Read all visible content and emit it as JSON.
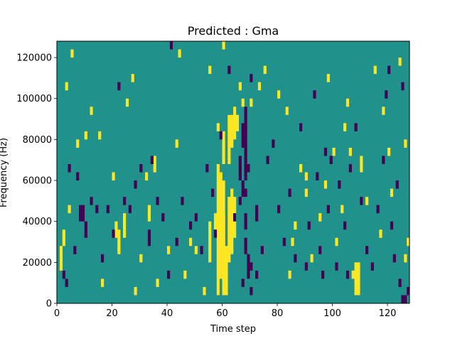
{
  "chart_data": {
    "type": "heatmap",
    "title": "Predicted : Gma",
    "xlabel": "Time step",
    "ylabel": "Frequency (Hz)",
    "xlim": [
      0,
      128
    ],
    "ylim": [
      0,
      128000
    ],
    "xticks": [
      0,
      20,
      40,
      60,
      80,
      100,
      120
    ],
    "yticks": [
      0,
      20000,
      40000,
      60000,
      80000,
      100000,
      120000
    ],
    "xtick_labels": [
      "0",
      "20",
      "40",
      "60",
      "80",
      "100",
      "120"
    ],
    "ytick_labels": [
      "0",
      "20000",
      "40000",
      "60000",
      "80000",
      "100000",
      "120000"
    ],
    "background_value": 0,
    "colors": {
      "background": "#21918c",
      "high": "#fde725",
      "low": "#440154"
    },
    "cell_height_hz": 4000,
    "cells_high": [
      [
        60,
        4000,
        28000
      ],
      [
        61,
        4000,
        28000
      ],
      [
        59,
        12000,
        64000
      ],
      [
        60,
        24000,
        44000
      ],
      [
        62,
        20000,
        52000
      ],
      [
        58,
        4000,
        68000
      ],
      [
        60,
        8000,
        60000
      ],
      [
        63,
        24000,
        56000
      ],
      [
        64,
        32000,
        52000
      ],
      [
        62,
        68000,
        92000
      ],
      [
        63,
        76000,
        92000
      ],
      [
        64,
        80000,
        92000
      ],
      [
        65,
        84000,
        92000
      ],
      [
        64,
        88000,
        96000
      ],
      [
        60,
        68000,
        84000
      ],
      [
        58,
        84000,
        88000
      ],
      [
        55,
        20000,
        40000
      ],
      [
        57,
        36000,
        44000
      ],
      [
        1,
        16000,
        28000
      ],
      [
        2,
        28000,
        36000
      ],
      [
        3,
        104000,
        108000
      ],
      [
        4,
        44000,
        48000
      ],
      [
        5,
        120000,
        124000
      ],
      [
        12,
        92000,
        96000
      ],
      [
        7,
        76000,
        80000
      ],
      [
        10,
        80000,
        84000
      ],
      [
        16,
        8000,
        12000
      ],
      [
        21,
        32000,
        40000
      ],
      [
        22,
        24000,
        36000
      ],
      [
        24,
        32000,
        44000
      ],
      [
        27,
        108000,
        112000
      ],
      [
        28,
        4000,
        8000
      ],
      [
        30,
        20000,
        24000
      ],
      [
        32,
        60000,
        64000
      ],
      [
        33,
        40000,
        48000
      ],
      [
        35,
        64000,
        72000
      ],
      [
        36,
        8000,
        12000
      ],
      [
        40,
        24000,
        28000
      ],
      [
        43,
        76000,
        80000
      ],
      [
        44,
        120000,
        124000
      ],
      [
        46,
        12000,
        16000
      ],
      [
        48,
        28000,
        32000
      ],
      [
        50,
        24000,
        28000
      ],
      [
        53,
        4000,
        8000
      ],
      [
        55,
        112000,
        116000
      ],
      [
        60,
        124000,
        128000
      ],
      [
        66,
        104000,
        108000
      ],
      [
        67,
        96000,
        100000
      ],
      [
        70,
        96000,
        100000
      ],
      [
        73,
        104000,
        108000
      ],
      [
        75,
        112000,
        116000
      ],
      [
        80,
        100000,
        104000
      ],
      [
        83,
        92000,
        96000
      ],
      [
        84,
        12000,
        16000
      ],
      [
        86,
        36000,
        40000
      ],
      [
        88,
        64000,
        68000
      ],
      [
        85,
        28000,
        32000
      ],
      [
        90,
        60000,
        64000
      ],
      [
        90,
        52000,
        56000
      ],
      [
        92,
        20000,
        24000
      ],
      [
        95,
        40000,
        44000
      ],
      [
        97,
        56000,
        60000
      ],
      [
        98,
        108000,
        112000
      ],
      [
        100,
        72000,
        76000
      ],
      [
        101,
        28000,
        32000
      ],
      [
        103,
        44000,
        48000
      ],
      [
        104,
        84000,
        88000
      ],
      [
        105,
        96000,
        100000
      ],
      [
        106,
        72000,
        76000
      ],
      [
        107,
        12000,
        16000
      ],
      [
        108,
        4000,
        20000
      ],
      [
        109,
        4000,
        20000
      ],
      [
        110,
        64000,
        72000
      ],
      [
        112,
        48000,
        52000
      ],
      [
        115,
        112000,
        116000
      ],
      [
        117,
        32000,
        36000
      ],
      [
        118,
        92000,
        96000
      ],
      [
        120,
        72000,
        76000
      ],
      [
        121,
        52000,
        56000
      ],
      [
        124,
        116000,
        120000
      ],
      [
        126,
        20000,
        24000
      ],
      [
        126,
        76000,
        80000
      ],
      [
        127,
        28000,
        32000
      ],
      [
        20,
        60000,
        64000
      ],
      [
        25,
        96000,
        100000
      ],
      [
        15,
        80000,
        84000
      ]
    ],
    "cells_low": [
      [
        67,
        76000,
        88000
      ],
      [
        68,
        60000,
        96000
      ],
      [
        69,
        64000,
        68000
      ],
      [
        66,
        60000,
        72000
      ],
      [
        67,
        52000,
        60000
      ],
      [
        68,
        52000,
        56000
      ],
      [
        66,
        48000,
        52000
      ],
      [
        68,
        36000,
        44000
      ],
      [
        68,
        24000,
        32000
      ],
      [
        69,
        12000,
        24000
      ],
      [
        70,
        16000,
        20000
      ],
      [
        67,
        8000,
        12000
      ],
      [
        70,
        4000,
        8000
      ],
      [
        72,
        12000,
        16000
      ],
      [
        2,
        12000,
        16000
      ],
      [
        3,
        8000,
        12000
      ],
      [
        4,
        64000,
        68000
      ],
      [
        6,
        24000,
        28000
      ],
      [
        7,
        60000,
        64000
      ],
      [
        8,
        40000,
        48000
      ],
      [
        9,
        40000,
        48000
      ],
      [
        10,
        32000,
        40000
      ],
      [
        12,
        48000,
        52000
      ],
      [
        14,
        44000,
        48000
      ],
      [
        16,
        20000,
        24000
      ],
      [
        18,
        44000,
        48000
      ],
      [
        20,
        32000,
        36000
      ],
      [
        22,
        104000,
        108000
      ],
      [
        24,
        48000,
        52000
      ],
      [
        26,
        44000,
        48000
      ],
      [
        28,
        56000,
        60000
      ],
      [
        30,
        64000,
        68000
      ],
      [
        33,
        28000,
        36000
      ],
      [
        34,
        68000,
        72000
      ],
      [
        36,
        48000,
        52000
      ],
      [
        38,
        40000,
        44000
      ],
      [
        40,
        12000,
        16000
      ],
      [
        41,
        124000,
        128000
      ],
      [
        43,
        28000,
        32000
      ],
      [
        45,
        48000,
        52000
      ],
      [
        48,
        36000,
        40000
      ],
      [
        50,
        40000,
        44000
      ],
      [
        52,
        24000,
        28000
      ],
      [
        54,
        64000,
        68000
      ],
      [
        56,
        52000,
        56000
      ],
      [
        57,
        32000,
        36000
      ],
      [
        59,
        80000,
        84000
      ],
      [
        62,
        112000,
        116000
      ],
      [
        64,
        40000,
        44000
      ],
      [
        70,
        108000,
        112000
      ],
      [
        72,
        40000,
        48000
      ],
      [
        74,
        24000,
        28000
      ],
      [
        76,
        68000,
        72000
      ],
      [
        78,
        76000,
        80000
      ],
      [
        80,
        44000,
        48000
      ],
      [
        82,
        28000,
        32000
      ],
      [
        84,
        52000,
        56000
      ],
      [
        86,
        20000,
        24000
      ],
      [
        88,
        84000,
        88000
      ],
      [
        90,
        16000,
        20000
      ],
      [
        91,
        36000,
        40000
      ],
      [
        93,
        100000,
        104000
      ],
      [
        94,
        60000,
        64000
      ],
      [
        95,
        24000,
        28000
      ],
      [
        96,
        12000,
        16000
      ],
      [
        97,
        72000,
        76000
      ],
      [
        98,
        44000,
        48000
      ],
      [
        99,
        68000,
        72000
      ],
      [
        101,
        16000,
        20000
      ],
      [
        102,
        56000,
        60000
      ],
      [
        104,
        36000,
        40000
      ],
      [
        105,
        12000,
        16000
      ],
      [
        106,
        64000,
        68000
      ],
      [
        108,
        84000,
        88000
      ],
      [
        110,
        48000,
        52000
      ],
      [
        112,
        24000,
        28000
      ],
      [
        114,
        16000,
        20000
      ],
      [
        116,
        44000,
        48000
      ],
      [
        118,
        68000,
        72000
      ],
      [
        120,
        112000,
        116000
      ],
      [
        122,
        20000,
        24000
      ],
      [
        124,
        8000,
        12000
      ],
      [
        125,
        0,
        4000
      ],
      [
        126,
        0,
        4000
      ],
      [
        127,
        4000,
        8000
      ],
      [
        119,
        100000,
        104000
      ],
      [
        121,
        36000,
        40000
      ],
      [
        123,
        56000,
        60000
      ],
      [
        125,
        104000,
        108000
      ]
    ]
  }
}
